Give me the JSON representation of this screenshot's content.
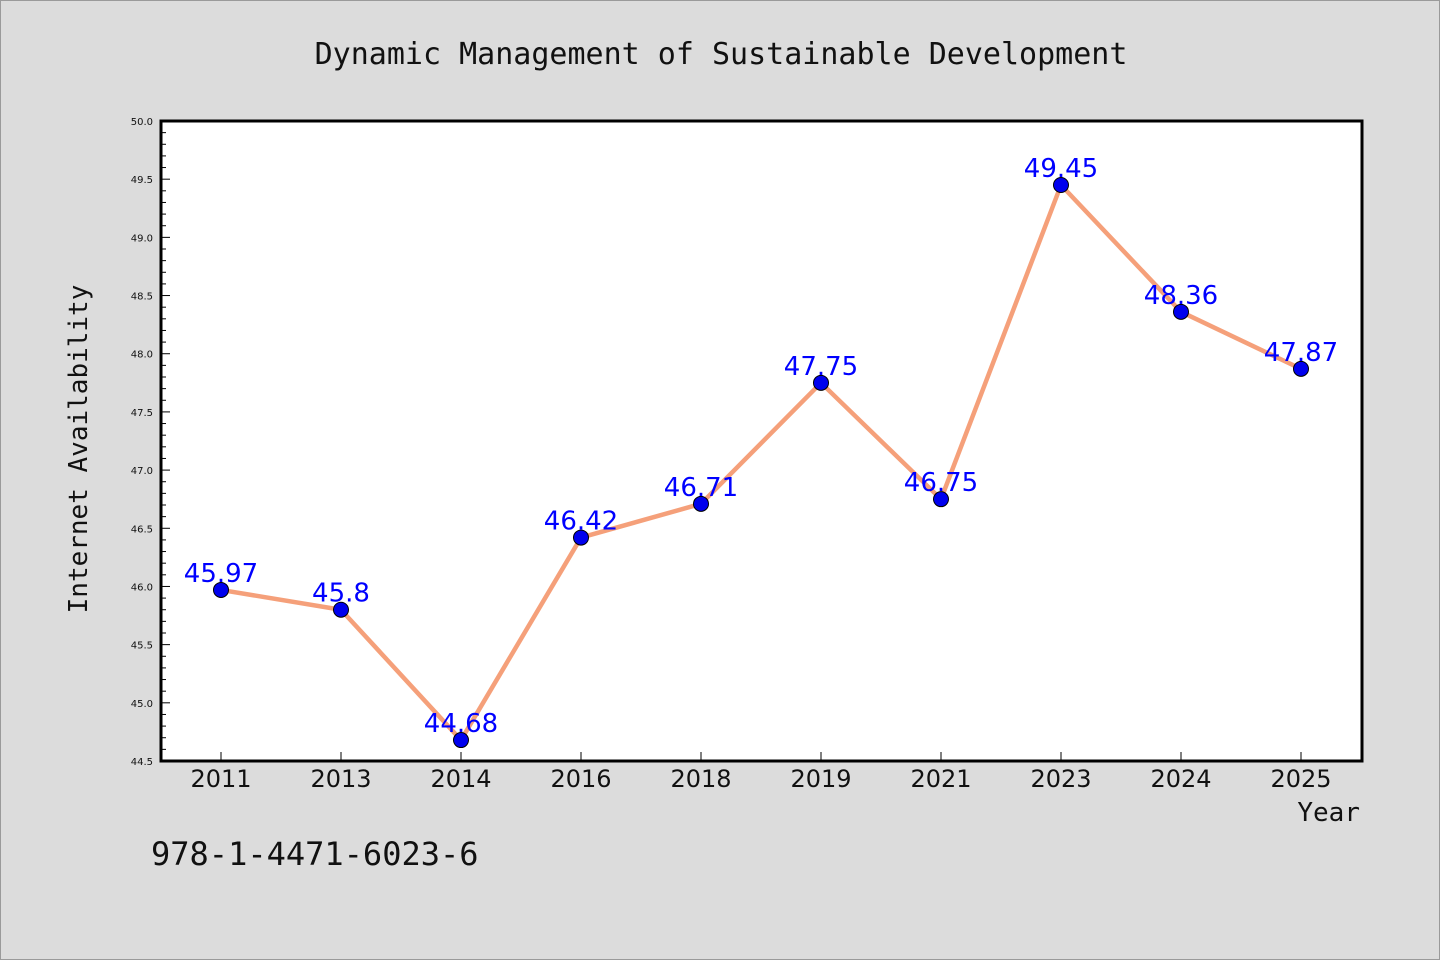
{
  "chart_data": {
    "type": "line",
    "title": "Dynamic Management of Sustainable Development",
    "xlabel": "Year",
    "ylabel": "Internet Availability",
    "categories": [
      "2011",
      "2013",
      "2014",
      "2016",
      "2018",
      "2019",
      "2021",
      "2023",
      "2024",
      "2025"
    ],
    "series": [
      {
        "values": [
          45.97,
          45.8,
          44.68,
          46.42,
          46.71,
          47.75,
          46.75,
          49.45,
          48.36,
          47.87
        ],
        "data_labels": [
          "45.97",
          "45.8",
          "44.68",
          "46.42",
          "46.71",
          "47.75",
          "46.75",
          "49.45",
          "48.36",
          "47.87"
        ],
        "line_color": "#f5a07a",
        "marker_color": "#0000ee",
        "label_color": "#0000ff"
      }
    ],
    "ylim": [
      44.5,
      50.0
    ],
    "yticks": [
      "44.5",
      "45.0",
      "45.5",
      "46.0",
      "46.5",
      "47.0",
      "47.5",
      "48.0",
      "48.5",
      "49.0",
      "49.5",
      "50.0"
    ],
    "grid": false,
    "legend": "none"
  },
  "footer": {
    "isbn": "978-1-4471-6023-6"
  },
  "colors": {
    "background": "#dcdcdc",
    "plot_background": "#ffffff"
  }
}
